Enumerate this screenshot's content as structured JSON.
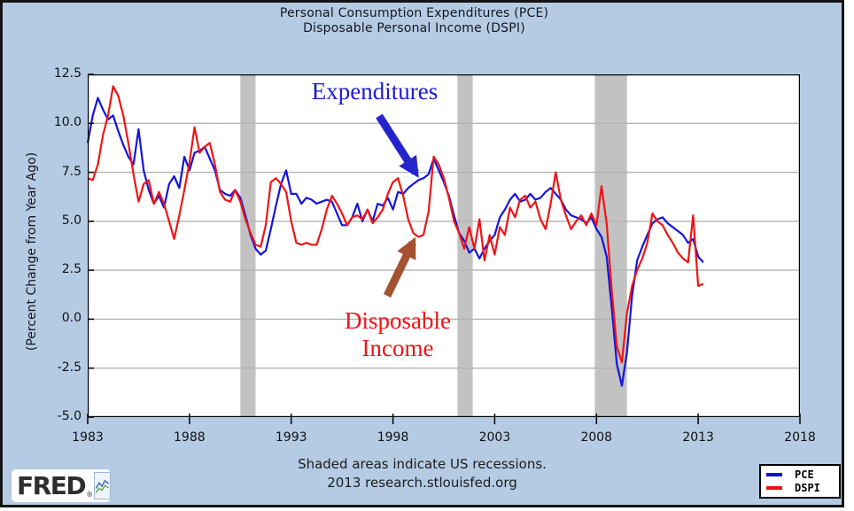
{
  "title": {
    "line1": "Personal Consumption Expenditures (PCE)",
    "line2": "Disposable Personal Income (DSPI)"
  },
  "y_axis": {
    "label": "(Percent Change from Year Ago)",
    "ticks": [
      12.5,
      10.0,
      7.5,
      5.0,
      2.5,
      0.0,
      -2.5,
      -5.0
    ]
  },
  "x_axis": {
    "ticks": [
      1983,
      1988,
      1993,
      1998,
      2003,
      2008,
      2013,
      2018
    ]
  },
  "annotations": {
    "expenditures": {
      "text": "Expenditures",
      "color": "#1b1bd0"
    },
    "disposable_income": {
      "text_line1": "Disposable",
      "text_line2": "Income",
      "color": "#ee1414"
    },
    "arrow_blue_color": "#2525cc",
    "arrow_brown_color": "#a45232"
  },
  "footer": {
    "line1": "Shaded areas indicate US recessions.",
    "line2": "2013 research.stlouisfed.org"
  },
  "legend": {
    "items": [
      {
        "label": "PCE",
        "color": "#0f0fd6"
      },
      {
        "label": "DSPI",
        "color": "#ee1111"
      }
    ]
  },
  "logo": {
    "text": "FRED",
    "reg_mark": "®"
  },
  "colors": {
    "background": "#b4cbe3",
    "frame_border": "#141414",
    "plot_background": "#ffffff",
    "gridline": "#b3b3b3",
    "recession_band": "#c2c2c2",
    "axis": "#000000"
  },
  "chart_data": {
    "type": "line",
    "title": "Personal Consumption Expenditures (PCE) / Disposable Personal Income (DSPI)",
    "ylabel": "(Percent Change from Year Ago)",
    "xlim": [
      1983,
      2018
    ],
    "ylim": [
      -5.0,
      12.5
    ],
    "grid_values": [
      10.0,
      7.5,
      5.0,
      2.5,
      0.0,
      -2.5
    ],
    "legend_position": "bottom-right",
    "x_start": 1983.0,
    "x_step": 0.25,
    "recessions": [
      [
        1990.5,
        1991.25
      ],
      [
        2001.17,
        2001.92
      ],
      [
        2007.92,
        2009.5
      ]
    ],
    "series": [
      {
        "name": "PCE",
        "color": "#1414dd",
        "values": [
          9.0,
          10.4,
          11.3,
          10.7,
          10.2,
          10.4,
          9.6,
          8.9,
          8.3,
          7.9,
          9.7,
          7.6,
          6.6,
          5.9,
          6.3,
          5.7,
          6.9,
          7.3,
          6.7,
          8.3,
          7.6,
          8.5,
          8.6,
          8.8,
          8.2,
          7.6,
          6.6,
          6.4,
          6.3,
          6.6,
          6.2,
          5.3,
          4.3,
          3.6,
          3.3,
          3.5,
          4.6,
          5.8,
          6.9,
          7.6,
          6.4,
          6.4,
          5.9,
          6.2,
          6.1,
          5.9,
          6.0,
          6.1,
          6.0,
          5.4,
          4.8,
          4.8,
          5.2,
          5.9,
          5.0,
          5.6,
          5.0,
          5.9,
          5.8,
          6.2,
          5.6,
          6.5,
          6.4,
          6.7,
          6.9,
          7.1,
          7.2,
          7.4,
          8.2,
          7.6,
          7.0,
          6.3,
          5.3,
          4.4,
          4.0,
          3.4,
          3.6,
          3.1,
          3.6,
          4.0,
          4.3,
          5.2,
          5.6,
          6.1,
          6.4,
          6.0,
          6.1,
          6.4,
          6.1,
          6.2,
          6.5,
          6.7,
          6.4,
          6.1,
          5.6,
          5.3,
          5.2,
          5.1,
          4.9,
          5.2,
          4.6,
          4.2,
          3.2,
          0.6,
          -2.3,
          -3.4,
          -1.7,
          1.2,
          3.0,
          3.7,
          4.3,
          4.9,
          5.1,
          5.2,
          4.9,
          4.7,
          4.5,
          4.3,
          3.9,
          4.1,
          3.2,
          2.9
        ]
      },
      {
        "name": "DSPI",
        "color": "#ee1515",
        "values": [
          7.2,
          7.1,
          7.9,
          9.4,
          10.4,
          11.9,
          11.4,
          10.4,
          9.0,
          7.4,
          6.0,
          6.9,
          7.1,
          5.9,
          6.5,
          5.9,
          5.0,
          4.1,
          5.3,
          6.6,
          8.0,
          9.8,
          8.5,
          8.8,
          9.0,
          7.9,
          6.5,
          6.1,
          6.0,
          6.6,
          6.0,
          5.1,
          4.4,
          3.8,
          3.7,
          4.8,
          7.0,
          7.2,
          6.9,
          6.5,
          5.0,
          3.9,
          3.8,
          3.9,
          3.8,
          3.8,
          4.6,
          5.6,
          6.3,
          5.9,
          5.4,
          4.8,
          5.2,
          5.3,
          5.1,
          5.6,
          4.9,
          5.2,
          5.6,
          6.4,
          7.0,
          7.2,
          6.3,
          5.1,
          4.4,
          4.2,
          4.3,
          5.5,
          8.3,
          7.9,
          7.2,
          6.2,
          5.0,
          4.4,
          3.6,
          4.7,
          3.6,
          5.1,
          3.0,
          4.3,
          3.3,
          4.7,
          4.3,
          5.7,
          5.2,
          6.1,
          6.3,
          5.7,
          6.0,
          5.1,
          4.6,
          5.9,
          7.5,
          6.1,
          5.3,
          4.6,
          5.0,
          5.3,
          4.8,
          5.4,
          4.8,
          6.8,
          4.9,
          1.5,
          -1.4,
          -2.2,
          0.3,
          1.7,
          2.5,
          3.1,
          3.9,
          5.4,
          5.0,
          4.8,
          4.3,
          3.9,
          3.4,
          3.1,
          2.9,
          5.3,
          1.7,
          1.8
        ]
      }
    ]
  }
}
